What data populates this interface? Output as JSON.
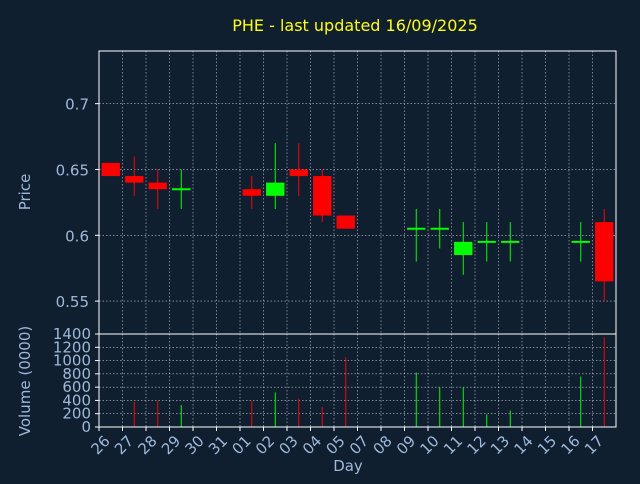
{
  "title": "PHE - last updated 16/09/2025",
  "colors": {
    "background": "#0f1f30",
    "title": "#ffff00",
    "axis_text": "#9fb8d8",
    "frame": "#ffffff",
    "grid": "#ffffff",
    "up": "#00ff00",
    "down": "#ff0000"
  },
  "chart_data": [
    {
      "type": "candlestick",
      "title": "PHE - last updated 16/09/2025",
      "ylabel": "Price",
      "ylim": [
        0.525,
        0.74
      ],
      "yticks": [
        0.55,
        0.6,
        0.65,
        0.7
      ],
      "ytick_labels": [
        "0.55",
        "0.6",
        "0.65",
        "0.7"
      ],
      "grid": true,
      "x_index": [
        0,
        1,
        2,
        3,
        4,
        5,
        6,
        7,
        8,
        9,
        10,
        11,
        12,
        13,
        14,
        15,
        16,
        17,
        18,
        19,
        20,
        21
      ],
      "candles": [
        {
          "i": 0,
          "open": 0.655,
          "close": 0.645,
          "high": 0.655,
          "low": 0.645
        },
        {
          "i": 1,
          "open": 0.645,
          "close": 0.64,
          "high": 0.66,
          "low": 0.63
        },
        {
          "i": 2,
          "open": 0.64,
          "close": 0.635,
          "high": 0.65,
          "low": 0.62
        },
        {
          "i": 3,
          "open": 0.635,
          "close": 0.635,
          "high": 0.65,
          "low": 0.62
        },
        {
          "i": 6,
          "open": 0.635,
          "close": 0.63,
          "high": 0.645,
          "low": 0.62
        },
        {
          "i": 7,
          "open": 0.63,
          "close": 0.64,
          "high": 0.67,
          "low": 0.62
        },
        {
          "i": 8,
          "open": 0.65,
          "close": 0.645,
          "high": 0.67,
          "low": 0.63
        },
        {
          "i": 9,
          "open": 0.645,
          "close": 0.615,
          "high": 0.65,
          "low": 0.61
        },
        {
          "i": 10,
          "open": 0.615,
          "close": 0.605,
          "high": 0.615,
          "low": 0.605
        },
        {
          "i": 13,
          "open": 0.605,
          "close": 0.605,
          "high": 0.62,
          "low": 0.58
        },
        {
          "i": 14,
          "open": 0.605,
          "close": 0.605,
          "high": 0.62,
          "low": 0.59
        },
        {
          "i": 15,
          "open": 0.585,
          "close": 0.595,
          "high": 0.61,
          "low": 0.57
        },
        {
          "i": 16,
          "open": 0.595,
          "close": 0.595,
          "high": 0.61,
          "low": 0.58
        },
        {
          "i": 17,
          "open": 0.595,
          "close": 0.595,
          "high": 0.61,
          "low": 0.58
        },
        {
          "i": 20,
          "open": 0.595,
          "close": 0.595,
          "high": 0.61,
          "low": 0.58
        },
        {
          "i": 21,
          "open": 0.61,
          "close": 0.565,
          "high": 0.62,
          "low": 0.55
        }
      ]
    },
    {
      "type": "bar",
      "ylabel": "Volume (0000)",
      "xlabel": "Day",
      "ylim": [
        0,
        1400
      ],
      "yticks": [
        0,
        200,
        400,
        600,
        800,
        1000,
        1200,
        1400
      ],
      "ytick_labels": [
        "0",
        "200",
        "400",
        "600",
        "800",
        "1000",
        "1200",
        "1400"
      ],
      "grid": true,
      "categories": [
        "26",
        "27",
        "28",
        "29",
        "30",
        "31",
        "01",
        "02",
        "03",
        "04",
        "05",
        "07",
        "08",
        "09",
        "10",
        "11",
        "12",
        "13",
        "14",
        "15",
        "16",
        "17"
      ],
      "volumes": [
        {
          "i": 1,
          "value": 380,
          "direction": "down"
        },
        {
          "i": 2,
          "value": 390,
          "direction": "down"
        },
        {
          "i": 3,
          "value": 330,
          "direction": "up"
        },
        {
          "i": 6,
          "value": 390,
          "direction": "down"
        },
        {
          "i": 7,
          "value": 520,
          "direction": "up"
        },
        {
          "i": 8,
          "value": 430,
          "direction": "down"
        },
        {
          "i": 9,
          "value": 300,
          "direction": "down"
        },
        {
          "i": 10,
          "value": 1050,
          "direction": "down"
        },
        {
          "i": 13,
          "value": 820,
          "direction": "up"
        },
        {
          "i": 14,
          "value": 600,
          "direction": "up"
        },
        {
          "i": 15,
          "value": 600,
          "direction": "up"
        },
        {
          "i": 16,
          "value": 190,
          "direction": "up"
        },
        {
          "i": 17,
          "value": 250,
          "direction": "up"
        },
        {
          "i": 20,
          "value": 760,
          "direction": "up"
        },
        {
          "i": 21,
          "value": 1350,
          "direction": "down"
        }
      ]
    }
  ]
}
